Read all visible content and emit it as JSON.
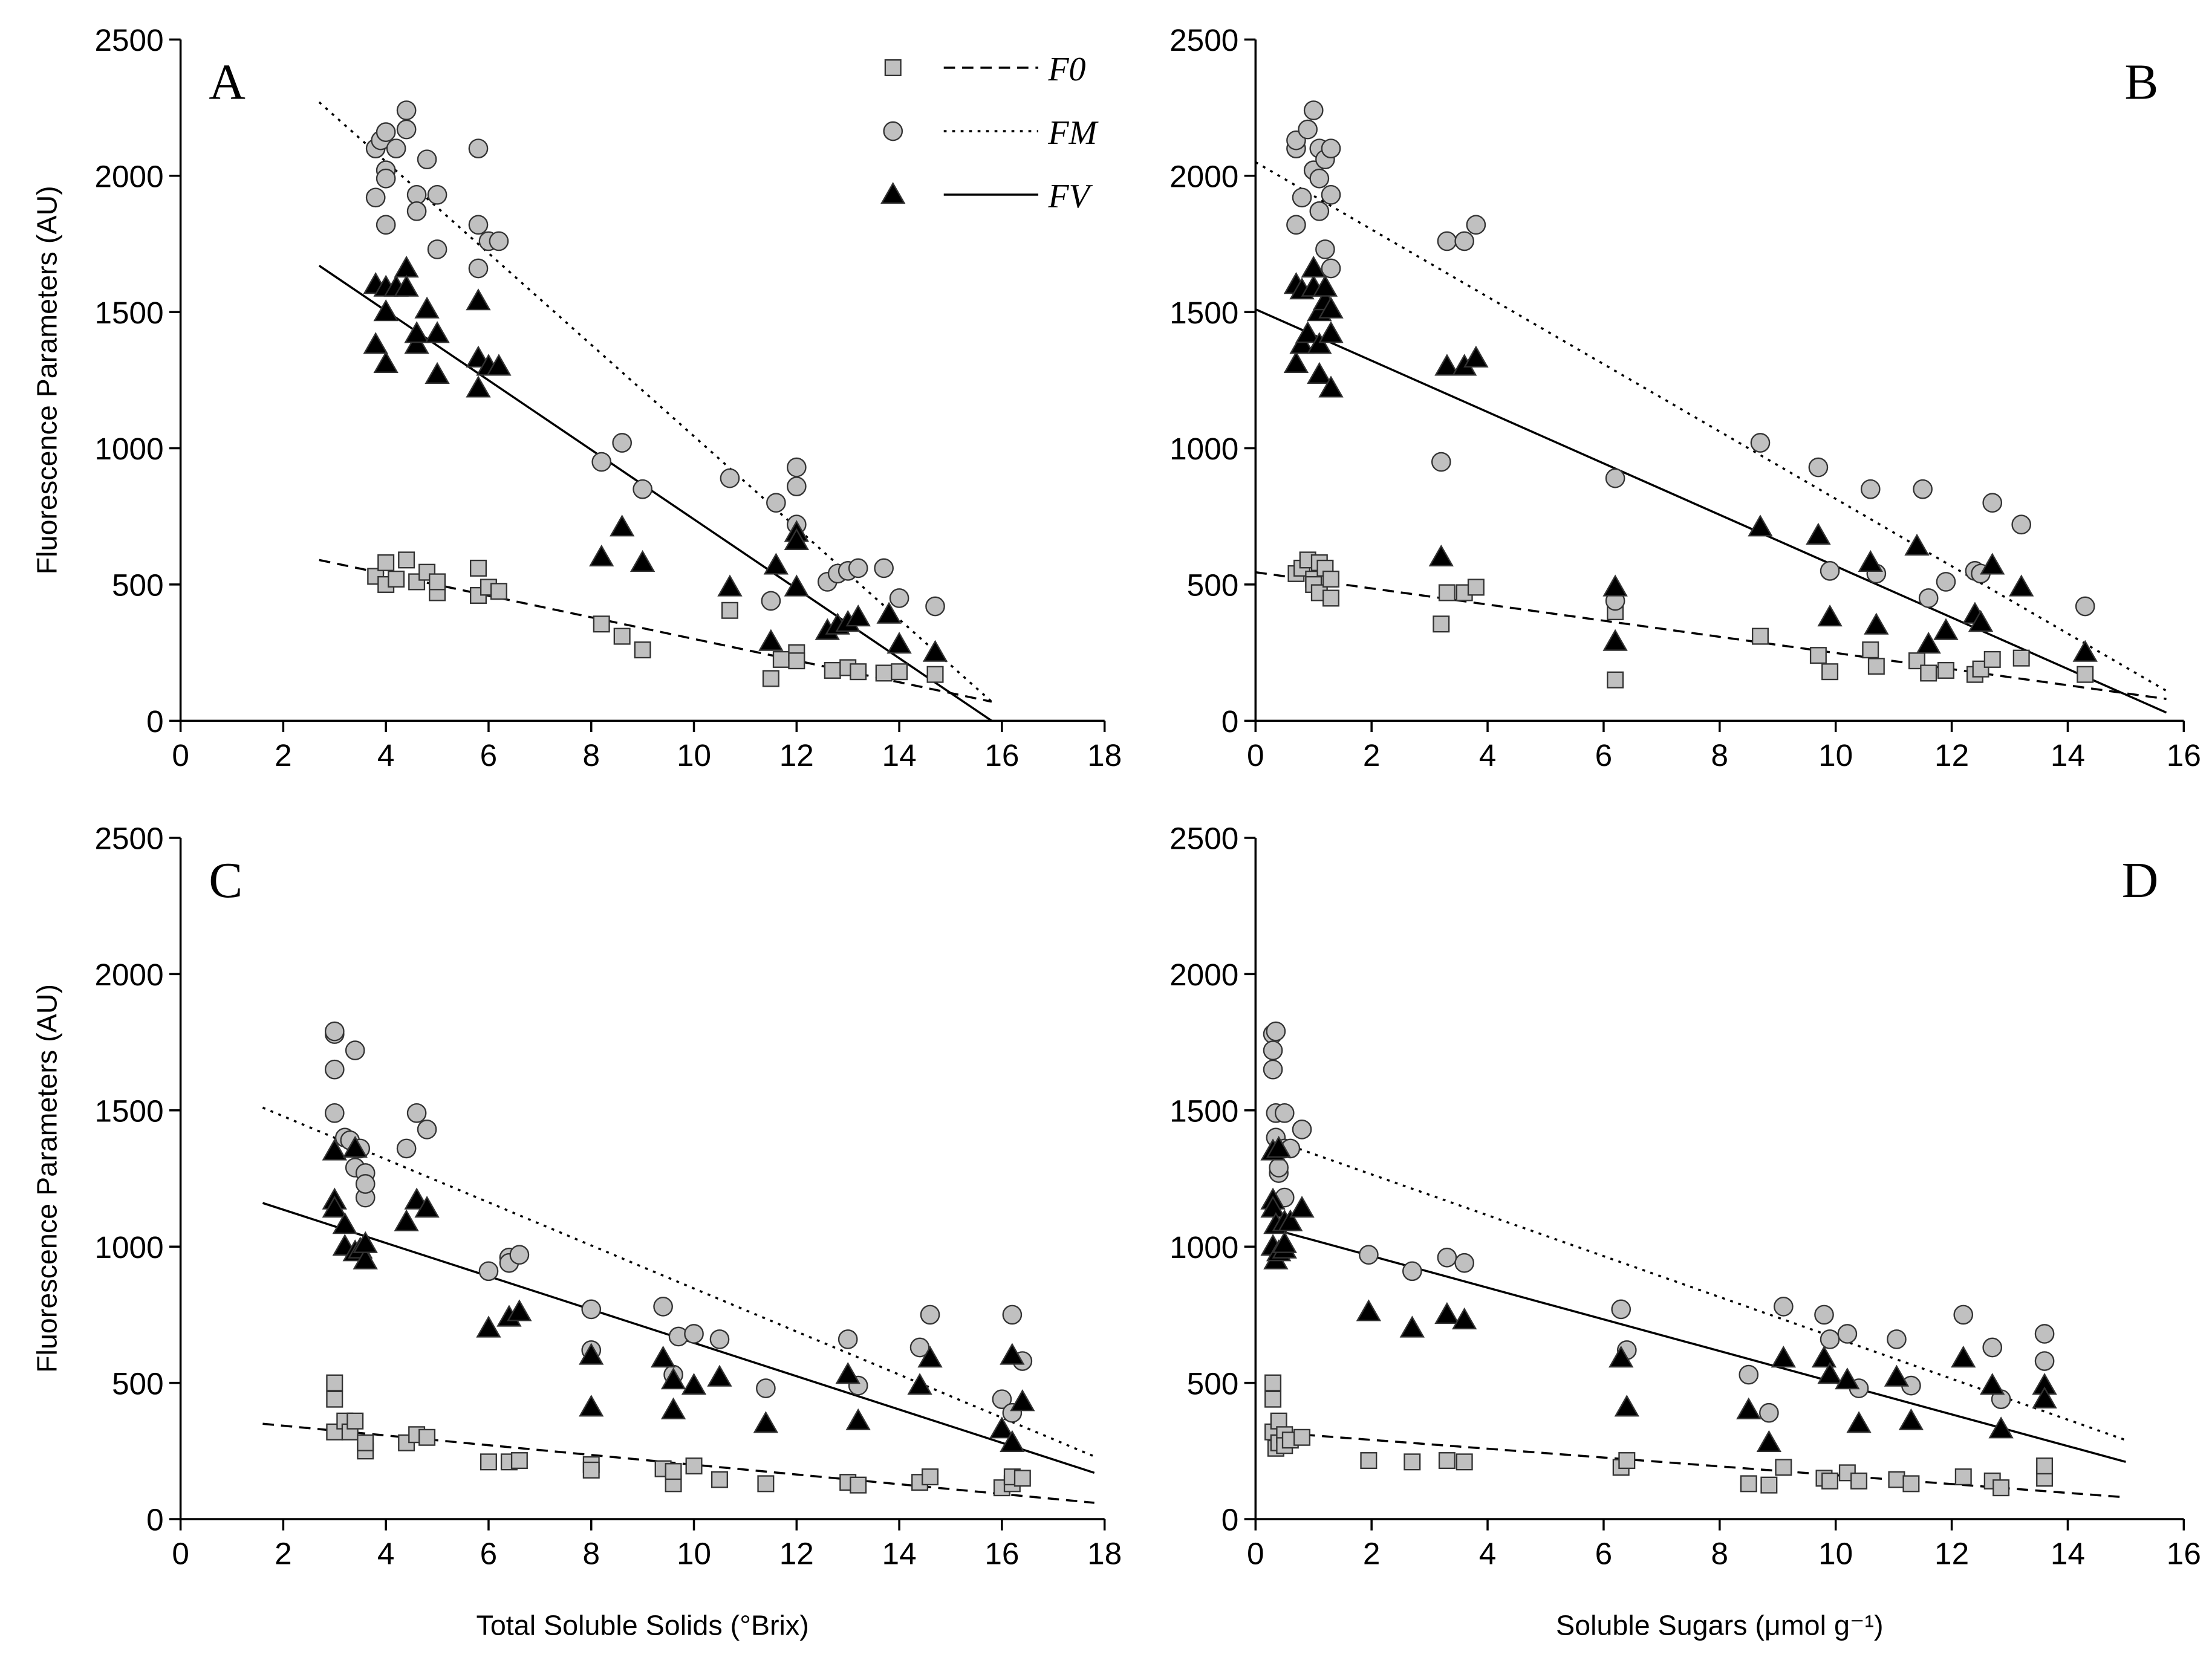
{
  "chart_data": [
    {
      "type": "scatter",
      "panel_label": "A",
      "label_position": "upper left",
      "ylabel": "Fluorescence Parameters (AU)",
      "legend": "upper right",
      "xlim": [
        0,
        18
      ],
      "xticks": [
        0,
        2,
        4,
        6,
        8,
        10,
        12,
        14,
        16,
        18
      ],
      "ylim": [
        0,
        2500
      ],
      "yticks": [
        0,
        500,
        1000,
        1500,
        2000,
        2500
      ],
      "series": [
        {
          "name": "F0",
          "marker": "square",
          "color": "#c0c0c0",
          "x": [
            3.8,
            4.0,
            4.0,
            4.2,
            4.4,
            4.6,
            4.8,
            5.0,
            5.0,
            5.8,
            5.8,
            6.0,
            6.2,
            8.2,
            8.6,
            9.0,
            10.7,
            11.5,
            11.7,
            12.0,
            12.0,
            12.7,
            13.0,
            13.2,
            13.7,
            14.0,
            14.7
          ],
          "values": [
            530,
            580,
            500,
            520,
            590,
            510,
            545,
            470,
            510,
            560,
            460,
            490,
            475,
            355,
            310,
            260,
            405,
            155,
            225,
            250,
            220,
            185,
            195,
            180,
            175,
            180,
            170
          ],
          "fit": {
            "style": "dashed",
            "x": [
              2.7,
              15.8
            ],
            "values": [
              590,
              70
            ]
          }
        },
        {
          "name": "FM",
          "marker": "circle",
          "color": "#c0c0c0",
          "x": [
            3.8,
            3.8,
            3.9,
            4.0,
            4.0,
            4.0,
            4.0,
            4.2,
            4.4,
            4.4,
            4.6,
            4.6,
            4.8,
            5.0,
            5.0,
            5.8,
            5.8,
            5.8,
            6.0,
            6.2,
            8.2,
            8.6,
            9.0,
            10.7,
            11.5,
            11.6,
            12.0,
            12.0,
            12.0,
            12.6,
            12.8,
            13.0,
            13.2,
            13.7,
            14.0,
            14.7
          ],
          "values": [
            2100,
            1920,
            2130,
            2020,
            1990,
            1820,
            2160,
            2100,
            2240,
            2170,
            1930,
            1870,
            2060,
            1930,
            1730,
            2100,
            1820,
            1660,
            1760,
            1760,
            950,
            1020,
            850,
            890,
            440,
            800,
            930,
            860,
            720,
            510,
            540,
            550,
            560,
            560,
            450,
            420
          ],
          "fit": {
            "style": "dotted",
            "x": [
              2.7,
              15.8
            ],
            "values": [
              2270,
              70
            ]
          }
        },
        {
          "name": "FV",
          "marker": "triangle",
          "color": "#000000",
          "x": [
            3.8,
            3.8,
            4.0,
            4.0,
            4.0,
            4.2,
            4.4,
            4.4,
            4.6,
            4.6,
            4.8,
            5.0,
            5.0,
            5.8,
            5.8,
            5.8,
            6.0,
            6.2,
            8.2,
            8.6,
            9.0,
            10.7,
            11.5,
            11.6,
            12.0,
            12.0,
            12.0,
            12.6,
            12.8,
            13.0,
            13.2,
            13.8,
            14.0,
            14.7
          ],
          "values": [
            1600,
            1380,
            1590,
            1500,
            1310,
            1590,
            1660,
            1590,
            1380,
            1420,
            1510,
            1420,
            1270,
            1540,
            1330,
            1220,
            1300,
            1300,
            600,
            710,
            580,
            490,
            290,
            570,
            690,
            660,
            490,
            330,
            350,
            360,
            380,
            390,
            280,
            250
          ],
          "fit": {
            "style": "solid",
            "x": [
              2.7,
              15.8
            ],
            "values": [
              1670,
              0
            ]
          }
        }
      ]
    },
    {
      "type": "scatter",
      "panel_label": "B",
      "label_position": "upper right",
      "xlim": [
        0,
        16
      ],
      "xticks": [
        0,
        2,
        4,
        6,
        8,
        10,
        12,
        14,
        16
      ],
      "ylim": [
        0,
        2500
      ],
      "yticks": [
        0,
        500,
        1000,
        1500,
        2000,
        2500
      ],
      "series": [
        {
          "marker": "square",
          "color": "#c0c0c0",
          "x": [
            0.7,
            0.8,
            0.9,
            1.0,
            1.0,
            1.1,
            1.1,
            1.2,
            1.3,
            1.3,
            3.2,
            3.3,
            3.6,
            3.8,
            6.2,
            6.2,
            8.7,
            9.7,
            9.9,
            10.6,
            10.7,
            11.4,
            11.6,
            11.9,
            12.4,
            12.5,
            12.7,
            13.2,
            14.3
          ],
          "values": [
            540,
            560,
            590,
            520,
            500,
            580,
            470,
            560,
            450,
            520,
            355,
            470,
            470,
            490,
            400,
            150,
            310,
            240,
            180,
            260,
            200,
            220,
            175,
            185,
            170,
            190,
            225,
            230,
            170
          ],
          "fit": {
            "style": "dashed",
            "x": [
              0,
              15.7
            ],
            "values": [
              545,
              80
            ]
          }
        },
        {
          "marker": "circle",
          "color": "#c0c0c0",
          "x": [
            0.7,
            0.7,
            0.7,
            0.8,
            0.9,
            1.0,
            1.0,
            1.1,
            1.1,
            1.1,
            1.2,
            1.2,
            1.3,
            1.3,
            1.3,
            3.2,
            3.3,
            3.6,
            3.8,
            6.2,
            6.2,
            8.7,
            9.7,
            9.9,
            10.6,
            10.7,
            11.5,
            11.6,
            11.9,
            12.4,
            12.5,
            12.7,
            13.2,
            14.3
          ],
          "values": [
            1820,
            2100,
            2130,
            1920,
            2170,
            2240,
            2020,
            1990,
            1870,
            2100,
            1730,
            2060,
            2100,
            1930,
            1660,
            950,
            1760,
            1760,
            1820,
            890,
            440,
            1020,
            930,
            550,
            850,
            540,
            850,
            450,
            510,
            550,
            540,
            800,
            720,
            420
          ],
          "fit": {
            "style": "dotted",
            "x": [
              0,
              15.7
            ],
            "values": [
              2050,
              110
            ]
          }
        },
        {
          "marker": "triangle",
          "color": "#000000",
          "x": [
            0.7,
            0.7,
            0.8,
            0.8,
            0.9,
            1.0,
            1.0,
            1.1,
            1.1,
            1.1,
            1.2,
            1.2,
            1.3,
            1.3,
            1.3,
            3.2,
            3.3,
            3.6,
            3.8,
            6.2,
            6.2,
            8.7,
            9.7,
            9.9,
            10.6,
            10.7,
            11.4,
            11.6,
            11.9,
            12.4,
            12.5,
            12.7,
            13.2,
            14.3
          ],
          "values": [
            1310,
            1600,
            1580,
            1380,
            1420,
            1590,
            1660,
            1500,
            1380,
            1270,
            1540,
            1590,
            1220,
            1420,
            1510,
            600,
            1300,
            1300,
            1330,
            290,
            490,
            710,
            680,
            380,
            580,
            350,
            640,
            280,
            330,
            390,
            360,
            570,
            490,
            250
          ],
          "fit": {
            "style": "solid",
            "x": [
              0,
              15.7
            ],
            "values": [
              1510,
              30
            ]
          }
        }
      ]
    },
    {
      "type": "scatter",
      "panel_label": "C",
      "label_position": "upper left",
      "ylabel": "Fluorescence Parameters (AU)",
      "xlabel": "Total Soluble Solids (°Brix)",
      "xlim": [
        0,
        18
      ],
      "xticks": [
        0,
        2,
        4,
        6,
        8,
        10,
        12,
        14,
        16,
        18
      ],
      "ylim": [
        0,
        2500
      ],
      "yticks": [
        0,
        500,
        1000,
        1500,
        2000,
        2500
      ],
      "series": [
        {
          "marker": "square",
          "color": "#c0c0c0",
          "x": [
            3.0,
            3.0,
            3.0,
            3.2,
            3.3,
            3.4,
            3.6,
            3.6,
            4.4,
            4.6,
            4.8,
            6.0,
            6.4,
            6.6,
            8.0,
            8.0,
            9.4,
            9.6,
            9.6,
            10.0,
            10.5,
            11.4,
            13.0,
            13.2,
            14.4,
            14.6,
            16.0,
            16.2,
            16.2,
            16.4
          ],
          "values": [
            500,
            440,
            320,
            360,
            320,
            360,
            250,
            280,
            280,
            310,
            300,
            210,
            210,
            215,
            200,
            180,
            185,
            130,
            175,
            195,
            145,
            130,
            135,
            125,
            135,
            155,
            115,
            130,
            155,
            150
          ],
          "fit": {
            "style": "dashed",
            "x": [
              1.6,
              17.8
            ],
            "values": [
              350,
              60
            ]
          }
        },
        {
          "marker": "circle",
          "color": "#c0c0c0",
          "x": [
            3.0,
            3.0,
            3.0,
            3.0,
            3.2,
            3.3,
            3.4,
            3.4,
            3.5,
            3.6,
            3.6,
            3.6,
            4.4,
            4.6,
            4.8,
            6.0,
            6.4,
            6.4,
            6.6,
            8.0,
            8.0,
            9.4,
            9.6,
            9.7,
            10.0,
            10.5,
            11.4,
            13.0,
            13.2,
            14.4,
            14.6,
            16.0,
            16.2,
            16.2,
            16.4
          ],
          "values": [
            1780,
            1790,
            1650,
            1490,
            1400,
            1390,
            1720,
            1290,
            1360,
            1270,
            1180,
            1230,
            1360,
            1490,
            1430,
            910,
            960,
            940,
            970,
            770,
            620,
            780,
            530,
            670,
            680,
            660,
            480,
            660,
            490,
            630,
            750,
            440,
            750,
            390,
            580
          ],
          "fit": {
            "style": "dotted",
            "x": [
              1.6,
              17.8
            ],
            "values": [
              1510,
              230
            ]
          }
        },
        {
          "marker": "triangle",
          "color": "#000000",
          "x": [
            3.0,
            3.0,
            3.0,
            3.2,
            3.2,
            3.4,
            3.4,
            3.5,
            3.6,
            3.6,
            4.4,
            4.6,
            4.8,
            6.0,
            6.4,
            6.6,
            8.0,
            8.0,
            9.4,
            9.6,
            9.6,
            10.0,
            10.5,
            11.4,
            13.0,
            13.2,
            14.4,
            14.6,
            16.0,
            16.2,
            16.2,
            16.4
          ],
          "values": [
            1350,
            1170,
            1140,
            1000,
            1080,
            1360,
            980,
            990,
            950,
            1010,
            1090,
            1170,
            1140,
            700,
            740,
            760,
            600,
            410,
            590,
            400,
            510,
            490,
            520,
            350,
            530,
            360,
            490,
            590,
            330,
            600,
            280,
            430
          ],
          "fit": {
            "style": "solid",
            "x": [
              1.6,
              17.8
            ],
            "values": [
              1160,
              170
            ]
          }
        }
      ]
    },
    {
      "type": "scatter",
      "panel_label": "D",
      "label_position": "upper right",
      "xlabel": "Soluble Sugars (μmol g⁻¹)",
      "xlim": [
        0,
        16
      ],
      "xticks": [
        0,
        2,
        4,
        6,
        8,
        10,
        12,
        14,
        16
      ],
      "ylim": [
        0,
        2500
      ],
      "yticks": [
        0,
        500,
        1000,
        1500,
        2000,
        2500
      ],
      "series": [
        {
          "marker": "square",
          "color": "#c0c0c0",
          "x": [
            0.3,
            0.3,
            0.3,
            0.35,
            0.4,
            0.4,
            0.5,
            0.5,
            0.6,
            0.8,
            1.95,
            2.7,
            3.3,
            3.6,
            6.3,
            6.4,
            8.5,
            8.85,
            9.1,
            9.8,
            9.9,
            10.2,
            10.4,
            11.05,
            11.3,
            12.2,
            12.7,
            12.85,
            13.6,
            13.6
          ],
          "values": [
            500,
            440,
            320,
            260,
            360,
            280,
            310,
            270,
            290,
            300,
            215,
            210,
            215,
            210,
            190,
            215,
            130,
            125,
            190,
            150,
            140,
            170,
            140,
            145,
            130,
            155,
            140,
            115,
            150,
            195
          ],
          "fit": {
            "style": "dashed",
            "x": [
              0.2,
              15
            ],
            "values": [
              320,
              80
            ]
          }
        },
        {
          "marker": "circle",
          "color": "#c0c0c0",
          "x": [
            0.3,
            0.3,
            0.3,
            0.35,
            0.35,
            0.35,
            0.4,
            0.4,
            0.5,
            0.5,
            0.5,
            0.6,
            0.8,
            1.95,
            2.7,
            3.3,
            3.6,
            6.3,
            6.4,
            8.5,
            8.85,
            9.1,
            9.8,
            9.9,
            10.2,
            10.4,
            11.05,
            11.3,
            12.2,
            12.7,
            12.85,
            13.6,
            13.6
          ],
          "values": [
            1780,
            1650,
            1720,
            1790,
            1490,
            1400,
            1270,
            1290,
            1490,
            1360,
            1180,
            1360,
            1430,
            970,
            910,
            960,
            940,
            770,
            620,
            530,
            390,
            780,
            750,
            660,
            680,
            480,
            660,
            490,
            750,
            630,
            440,
            680,
            580
          ],
          "fit": {
            "style": "dotted",
            "x": [
              0.2,
              15
            ],
            "values": [
              1400,
              290
            ]
          }
        },
        {
          "marker": "triangle",
          "color": "#000000",
          "x": [
            0.3,
            0.3,
            0.3,
            0.3,
            0.35,
            0.35,
            0.4,
            0.4,
            0.5,
            0.5,
            0.5,
            0.6,
            0.8,
            1.95,
            2.7,
            3.3,
            3.6,
            6.3,
            6.4,
            8.5,
            8.85,
            9.1,
            9.8,
            9.9,
            10.2,
            10.4,
            11.05,
            11.3,
            12.2,
            12.7,
            12.85,
            13.6,
            13.6
          ],
          "values": [
            1350,
            1170,
            1140,
            1000,
            950,
            1080,
            1360,
            980,
            990,
            1010,
            1090,
            1090,
            1140,
            760,
            700,
            750,
            730,
            590,
            410,
            400,
            280,
            590,
            590,
            530,
            510,
            350,
            520,
            360,
            590,
            490,
            330,
            490,
            440
          ],
          "fit": {
            "style": "solid",
            "x": [
              0.2,
              15
            ],
            "values": [
              1070,
              210
            ]
          }
        }
      ]
    }
  ]
}
